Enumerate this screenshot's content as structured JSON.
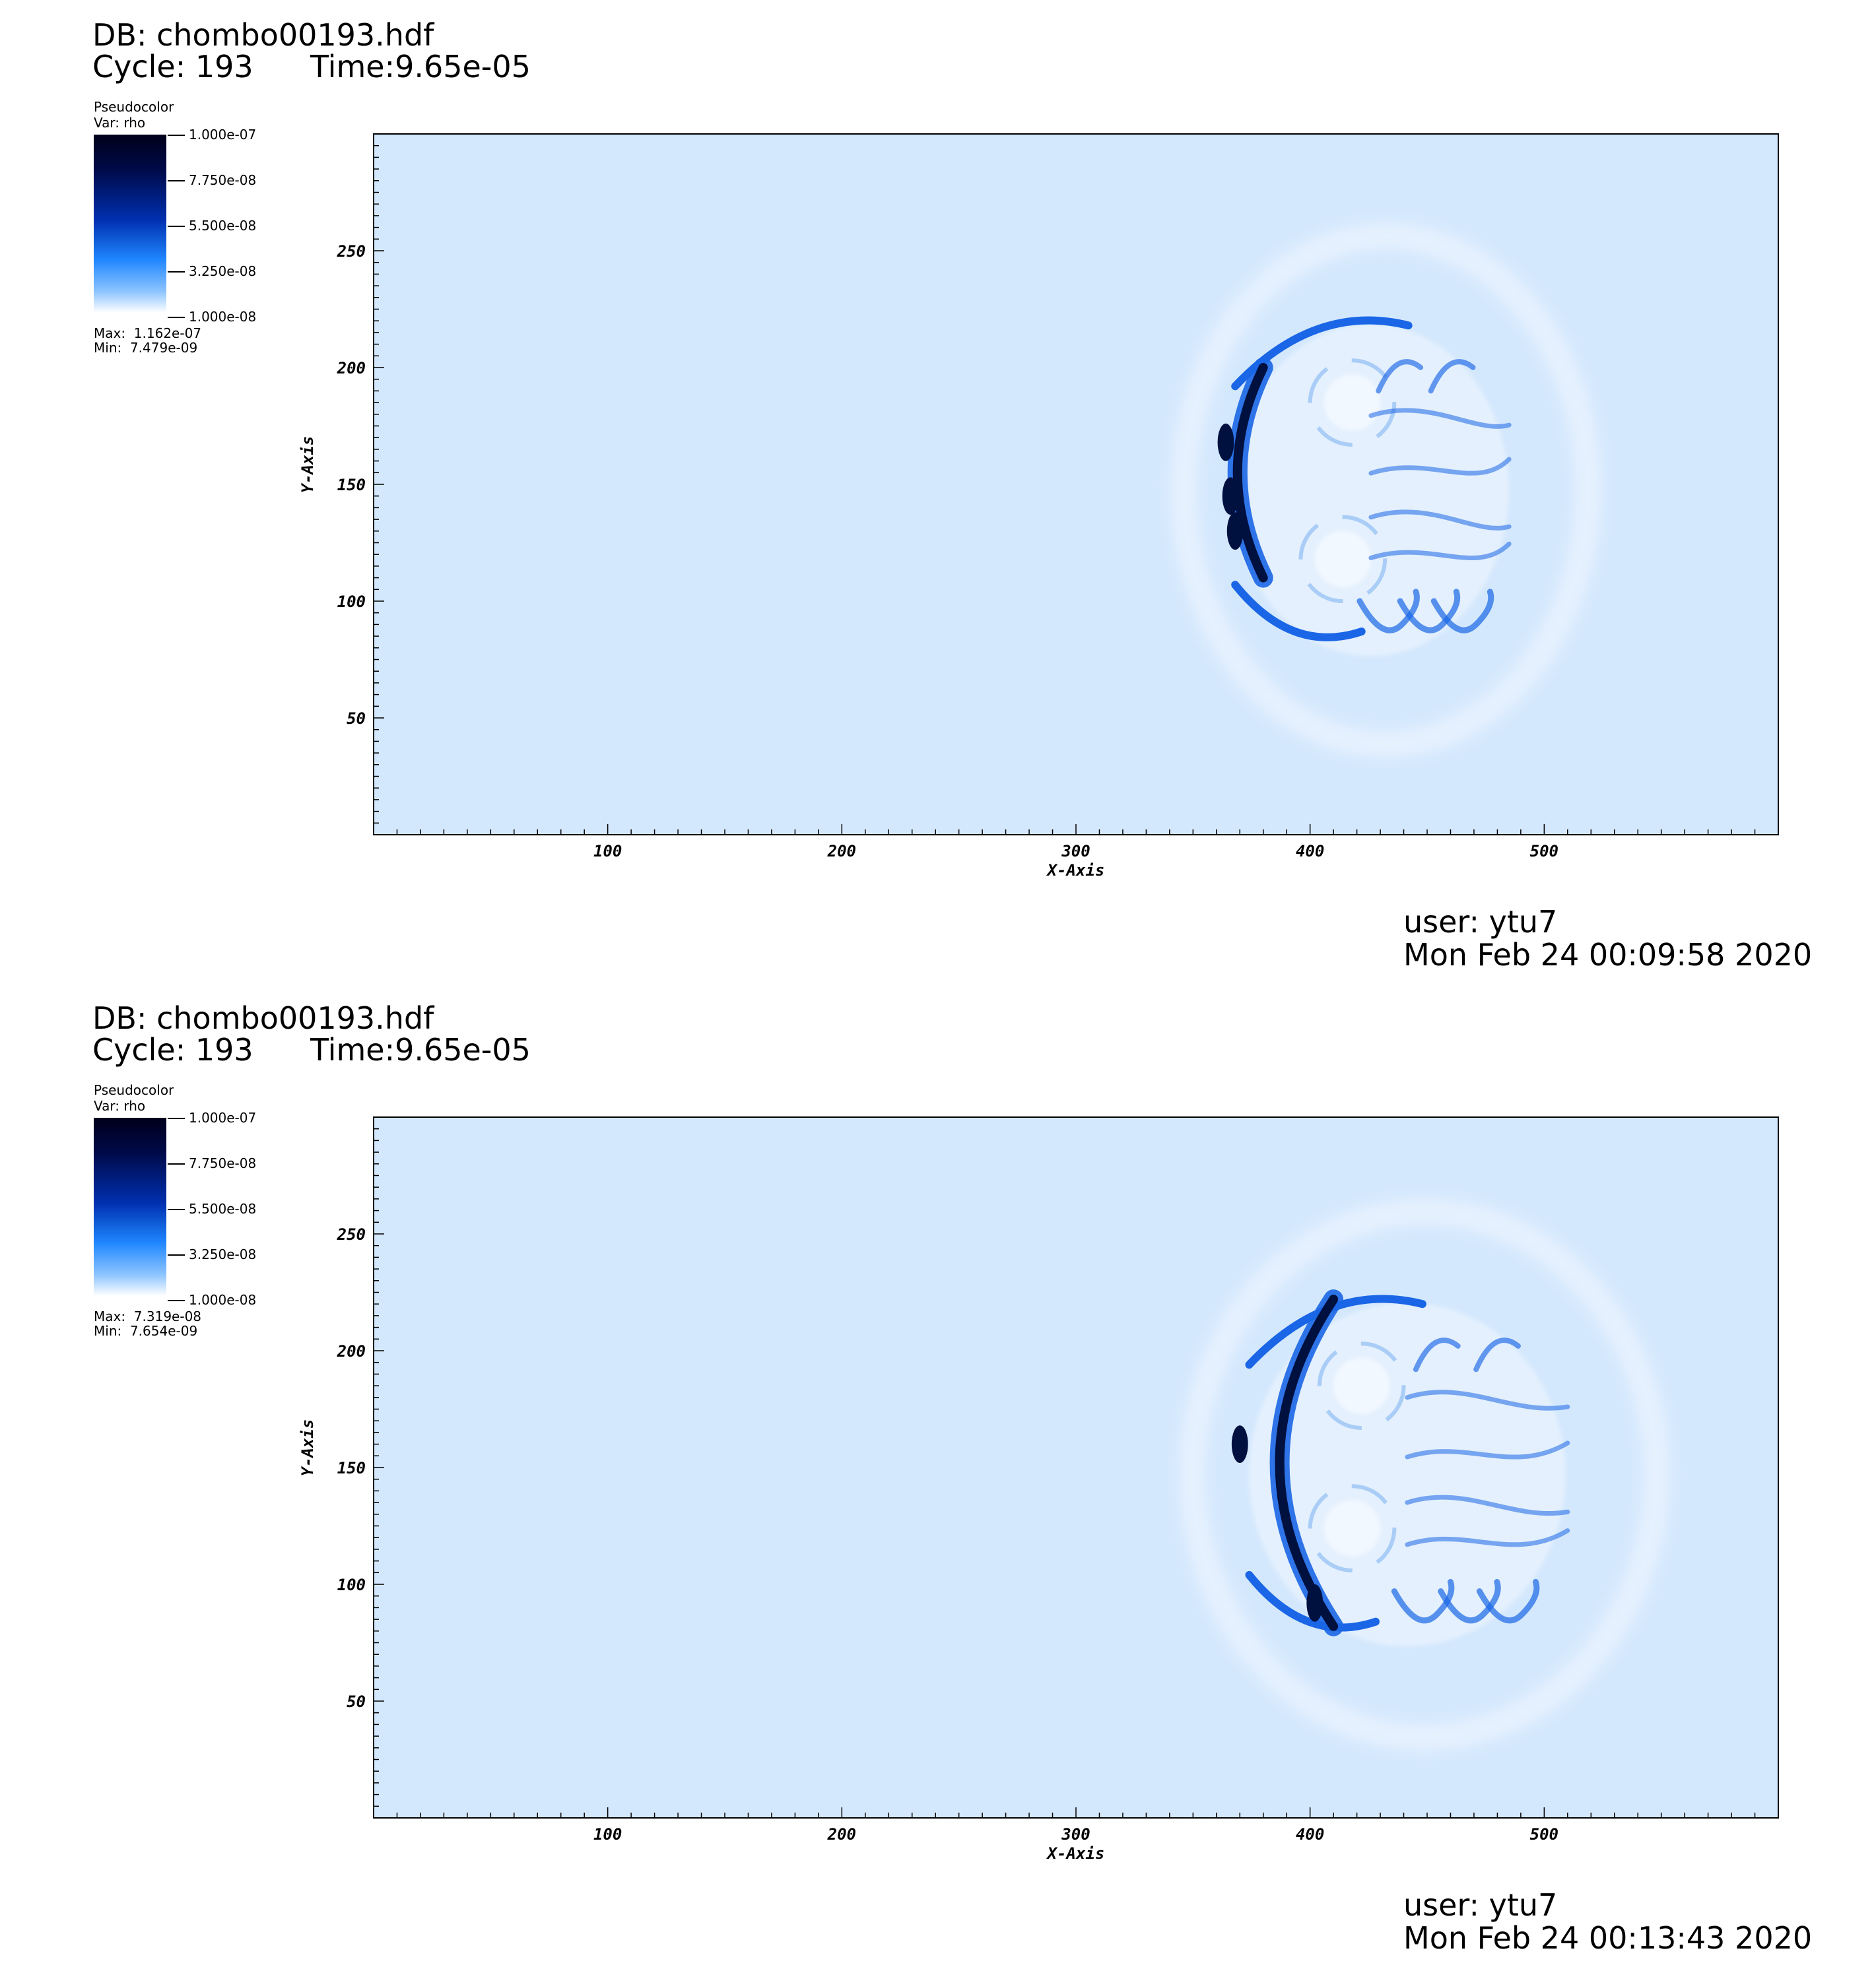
{
  "panels": [
    {
      "db_label": "DB: chombo00193.hdf",
      "cycle_label": "Cycle: 193",
      "time_label": "Time:9.65e-05",
      "legend": {
        "plot_type": "Pseudocolor",
        "var_label": "Var: rho",
        "ticks": [
          "1.000e-07",
          "7.750e-08",
          "5.500e-08",
          "3.250e-08",
          "1.000e-08"
        ],
        "max_label": "Max:  1.162e-07",
        "min_label": "Min:  7.479e-09"
      },
      "user_label": "user: ytu7",
      "date_label": "Mon Feb 24 00:09:58 2020"
    },
    {
      "db_label": "DB: chombo00193.hdf",
      "cycle_label": "Cycle: 193",
      "time_label": "Time:9.65e-05",
      "legend": {
        "plot_type": "Pseudocolor",
        "var_label": "Var: rho",
        "ticks": [
          "1.000e-07",
          "7.750e-08",
          "5.500e-08",
          "3.250e-08",
          "1.000e-08"
        ],
        "max_label": "Max:  7.319e-08",
        "min_label": "Min:  7.654e-09"
      },
      "user_label": "user: ytu7",
      "date_label": "Mon Feb 24 00:13:43 2020"
    }
  ],
  "colors": {
    "background_field": "#d4e8fd",
    "dense_front": "#00103f",
    "mid_blue": "#1a66e6",
    "light_swirl": "#f2f8ff"
  },
  "chart_data": [
    {
      "type": "heatmap",
      "title": "",
      "xlabel": "X-Axis",
      "ylabel": "Y-Axis",
      "xlim": [
        0,
        600
      ],
      "ylim": [
        0,
        300
      ],
      "x_ticks": [
        100,
        200,
        300,
        400,
        500
      ],
      "y_ticks": [
        50,
        100,
        150,
        200,
        250
      ],
      "colorbar_range": [
        1e-08,
        1e-07
      ],
      "variable": "rho",
      "max": 1.162e-07,
      "min": 7.479e-09,
      "features": {
        "shock_front_x_range": [
          362,
          380
        ],
        "shock_front_y_range": [
          110,
          200
        ],
        "dense_clumps": [
          {
            "x": 364,
            "y": 168,
            "rho": 1.1e-07
          },
          {
            "x": 366,
            "y": 145,
            "rho": 1e-07
          },
          {
            "x": 368,
            "y": 130,
            "rho": 1.1e-07
          }
        ],
        "vortex_centers": [
          {
            "x": 418,
            "y": 185
          },
          {
            "x": 414,
            "y": 118
          }
        ],
        "cloud_extent": {
          "x": [
            362,
            490
          ],
          "y": [
            75,
            220
          ]
        }
      }
    },
    {
      "type": "heatmap",
      "title": "",
      "xlabel": "X-Axis",
      "ylabel": "Y-Axis",
      "xlim": [
        0,
        600
      ],
      "ylim": [
        0,
        300
      ],
      "x_ticks": [
        100,
        200,
        300,
        400,
        500
      ],
      "y_ticks": [
        50,
        100,
        150,
        200,
        250
      ],
      "colorbar_range": [
        1e-08,
        1e-07
      ],
      "variable": "rho",
      "max": 7.319e-08,
      "min": 7.654e-09,
      "features": {
        "shock_front_x_range": [
          368,
          410
        ],
        "shock_front_y_range": [
          82,
          222
        ],
        "dense_clumps": [
          {
            "x": 370,
            "y": 160,
            "rho": 7e-08
          },
          {
            "x": 402,
            "y": 92,
            "rho": 6.5e-08
          }
        ],
        "vortex_centers": [
          {
            "x": 422,
            "y": 185
          },
          {
            "x": 418,
            "y": 124
          }
        ],
        "cloud_extent": {
          "x": [
            368,
            515
          ],
          "y": [
            72,
            222
          ]
        }
      }
    }
  ]
}
